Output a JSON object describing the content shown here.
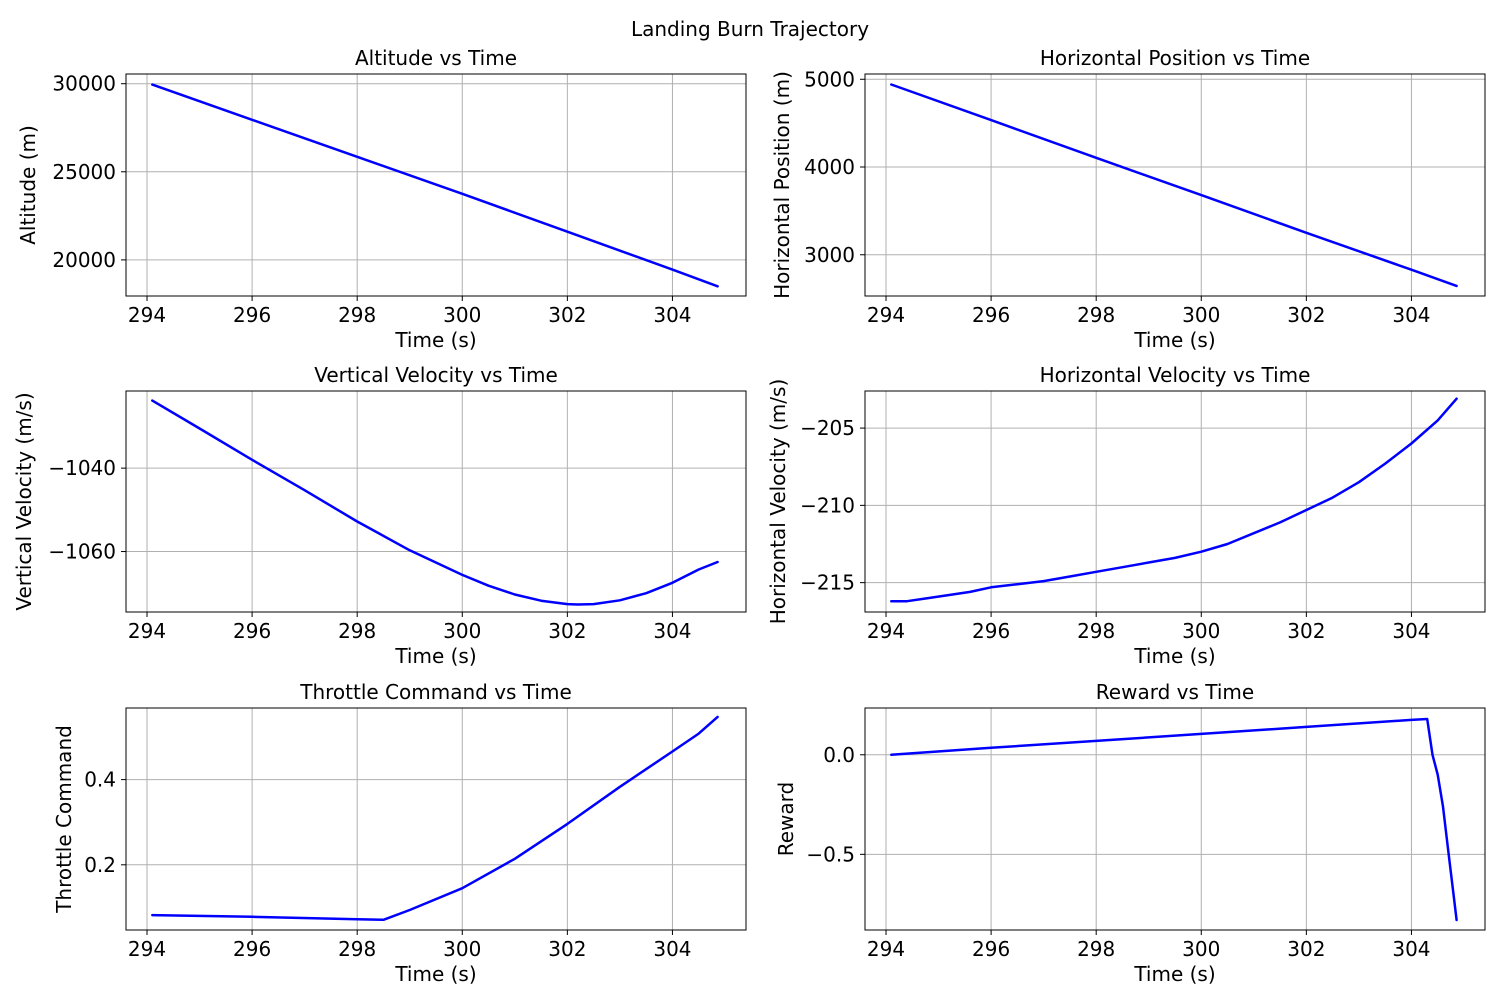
{
  "suptitle": "Landing Burn Trajectory",
  "chart_data": [
    {
      "type": "line",
      "title": "Altitude vs Time",
      "xlabel": "Time (s)",
      "ylabel": "Altitude (m)",
      "xlim": [
        293.6,
        305.4
      ],
      "ylim": [
        17950,
        30550
      ],
      "xticks": [
        294,
        296,
        298,
        300,
        302,
        304
      ],
      "xtick_labels": [
        "294",
        "296",
        "298",
        "300",
        "302",
        "304"
      ],
      "yticks": [
        20000,
        25000,
        30000
      ],
      "ytick_labels": [
        "20000",
        "25000",
        "30000"
      ],
      "grid": true,
      "color": "#0000ff",
      "x": [
        294.1,
        296.0,
        298.0,
        300.0,
        302.0,
        304.0,
        304.86
      ],
      "y": [
        29950,
        27950,
        25850,
        23750,
        21600,
        19450,
        18500
      ]
    },
    {
      "type": "line",
      "title": "Horizontal Position vs Time",
      "xlabel": "Time (s)",
      "ylabel": "Horizontal Position (m)",
      "xlim": [
        293.6,
        305.4
      ],
      "ylim": [
        2530,
        5060
      ],
      "xticks": [
        294,
        296,
        298,
        300,
        302,
        304
      ],
      "xtick_labels": [
        "294",
        "296",
        "298",
        "300",
        "302",
        "304"
      ],
      "yticks": [
        3000,
        4000,
        5000
      ],
      "ytick_labels": [
        "3000",
        "4000",
        "5000"
      ],
      "grid": true,
      "color": "#0000ff",
      "x": [
        294.1,
        296.0,
        298.0,
        300.0,
        302.0,
        304.0,
        304.86
      ],
      "y": [
        4940,
        4535,
        4105,
        3680,
        3250,
        2830,
        2645
      ]
    },
    {
      "type": "line",
      "title": "Vertical Velocity vs Time",
      "xlabel": "Time (s)",
      "ylabel": "Vertical Velocity (m/s)",
      "xlim": [
        293.6,
        305.4
      ],
      "ylim": [
        -1074.5,
        -1021.5
      ],
      "xticks": [
        294,
        296,
        298,
        300,
        302,
        304
      ],
      "xtick_labels": [
        "294",
        "296",
        "298",
        "300",
        "302",
        "304"
      ],
      "yticks": [
        -1060,
        -1040
      ],
      "ytick_labels": [
        "−1060",
        "−1040"
      ],
      "grid": true,
      "color": "#0000ff",
      "x": [
        294.1,
        295.0,
        296.0,
        297.0,
        298.0,
        299.0,
        300.0,
        300.5,
        301.0,
        301.5,
        302.0,
        302.2,
        302.5,
        303.0,
        303.5,
        304.0,
        304.5,
        304.86
      ],
      "y": [
        -1023.8,
        -1030.5,
        -1038.0,
        -1045.3,
        -1052.8,
        -1059.7,
        -1065.6,
        -1068.2,
        -1070.3,
        -1071.8,
        -1072.6,
        -1072.7,
        -1072.6,
        -1071.7,
        -1070.0,
        -1067.5,
        -1064.3,
        -1062.5
      ]
    },
    {
      "type": "line",
      "title": "Horizontal Velocity vs Time",
      "xlabel": "Time (s)",
      "ylabel": "Horizontal Velocity (m/s)",
      "xlim": [
        293.6,
        305.4
      ],
      "ylim": [
        -216.9,
        -202.6
      ],
      "xticks": [
        294,
        296,
        298,
        300,
        302,
        304
      ],
      "xtick_labels": [
        "294",
        "296",
        "298",
        "300",
        "302",
        "304"
      ],
      "yticks": [
        -215,
        -210,
        -205
      ],
      "ytick_labels": [
        "−215",
        "−210",
        "−205"
      ],
      "grid": true,
      "color": "#0000ff",
      "x": [
        294.1,
        294.4,
        294.8,
        295.2,
        295.6,
        296.0,
        296.5,
        297.0,
        297.5,
        298.0,
        298.5,
        299.0,
        299.5,
        300.0,
        300.5,
        301.0,
        301.5,
        302.0,
        302.5,
        303.0,
        303.5,
        304.0,
        304.5,
        304.86
      ],
      "y": [
        -216.2,
        -216.2,
        -216.0,
        -215.8,
        -215.6,
        -215.3,
        -215.1,
        -214.9,
        -214.6,
        -214.3,
        -214.0,
        -213.7,
        -213.4,
        -213.0,
        -212.5,
        -211.8,
        -211.1,
        -210.3,
        -209.5,
        -208.5,
        -207.3,
        -206.0,
        -204.5,
        -203.1
      ]
    },
    {
      "type": "line",
      "title": "Throttle Command vs Time",
      "xlabel": "Time (s)",
      "ylabel": "Throttle Command",
      "xlim": [
        293.6,
        305.4
      ],
      "ylim": [
        0.047,
        0.568
      ],
      "xticks": [
        294,
        296,
        298,
        300,
        302,
        304
      ],
      "xtick_labels": [
        "294",
        "296",
        "298",
        "300",
        "302",
        "304"
      ],
      "yticks": [
        0.2,
        0.4
      ],
      "ytick_labels": [
        "0.2",
        "0.4"
      ],
      "grid": true,
      "color": "#0000ff",
      "x": [
        294.1,
        296.0,
        298.0,
        298.5,
        299.0,
        300.0,
        301.0,
        302.0,
        303.0,
        304.0,
        304.5,
        304.86
      ],
      "y": [
        0.082,
        0.078,
        0.072,
        0.071,
        0.094,
        0.145,
        0.214,
        0.296,
        0.383,
        0.466,
        0.508,
        0.547
      ]
    },
    {
      "type": "line",
      "title": "Reward vs Time",
      "xlabel": "Time (s)",
      "ylabel": "Reward",
      "xlim": [
        293.6,
        305.4
      ],
      "ylim": [
        -0.88,
        0.235
      ],
      "xticks": [
        294,
        296,
        298,
        300,
        302,
        304
      ],
      "xtick_labels": [
        "294",
        "296",
        "298",
        "300",
        "302",
        "304"
      ],
      "yticks": [
        -0.5,
        0.0
      ],
      "ytick_labels": [
        "−0.5",
        "0.0"
      ],
      "grid": true,
      "color": "#0000ff",
      "x": [
        294.1,
        296.0,
        298.0,
        300.0,
        302.0,
        304.0,
        304.3,
        304.4,
        304.5,
        304.6,
        304.7,
        304.8,
        304.86
      ],
      "y": [
        0.0,
        0.035,
        0.07,
        0.105,
        0.14,
        0.175,
        0.18,
        0.0,
        -0.1,
        -0.26,
        -0.48,
        -0.7,
        -0.83
      ]
    }
  ]
}
